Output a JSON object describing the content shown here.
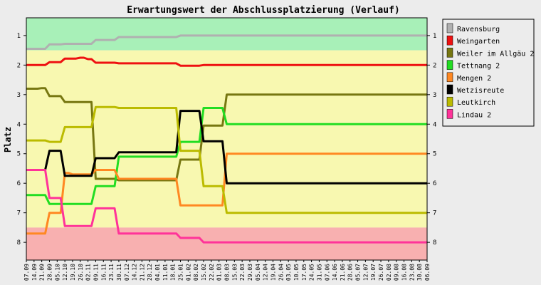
{
  "chart_data": {
    "type": "line",
    "title": "Erwartungswert der Abschlussplatzierung (Verlauf)",
    "ylabel": "Platz",
    "xlabel": "",
    "ylim": [
      0.4,
      8.6
    ],
    "y_inverted": true,
    "yticks": [
      "1",
      "2",
      "3",
      "4",
      "5",
      "6",
      "7",
      "8"
    ],
    "grid": false,
    "legend_position": "right",
    "zones": [
      {
        "from": 0.4,
        "to": 1.5,
        "color": "#a8f0b8"
      },
      {
        "from": 1.5,
        "to": 7.5,
        "color": "#f8f8b0"
      },
      {
        "from": 7.5,
        "to": 8.6,
        "color": "#f8b0b0"
      }
    ],
    "categories": [
      "07.09",
      "14.09",
      "21.09",
      "28.09",
      "05.10",
      "12.10",
      "19.10",
      "26.10",
      "02.11",
      "09.11",
      "16.11",
      "23.11",
      "30.11",
      "07.12",
      "14.12",
      "21.12",
      "28.12",
      "04.01",
      "11.01",
      "18.01",
      "25.01",
      "01.02",
      "08.02",
      "15.02",
      "22.02",
      "01.03",
      "08.03",
      "15.03",
      "22.03",
      "29.03",
      "05.04",
      "12.04",
      "19.04",
      "26.04",
      "03.05",
      "10.05",
      "17.05",
      "24.05",
      "31.05",
      "07.06",
      "14.06",
      "21.06",
      "28.06",
      "05.07",
      "12.07",
      "19.07",
      "26.07",
      "02.08",
      "09.08",
      "16.08",
      "23.08",
      "30.08",
      "06.09"
    ],
    "series": [
      {
        "name": "Ravensburg",
        "color": "#b0b0b0",
        "values": [
          1.45,
          1.45,
          1.45,
          1.3,
          1.3,
          1.28,
          1.28,
          1.28,
          1.28,
          1.15,
          1.15,
          1.15,
          1.05,
          1.05,
          1.05,
          1.05,
          1.05,
          1.05,
          1.05,
          1.05,
          1.0,
          1.0,
          1.0,
          1.0,
          1.0,
          1.0,
          1.0,
          1.0,
          1.0,
          1.0,
          1.0,
          1.0,
          1.0,
          1.0,
          1.0,
          1.0,
          1.0,
          1.0,
          1.0,
          1.0,
          1.0,
          1.0,
          1.0,
          1.0,
          1.0,
          1.0,
          1.0,
          1.0,
          1.0,
          1.0,
          1.0,
          1.0,
          1.0
        ]
      },
      {
        "name": "Weingarten",
        "color": "#ee1111",
        "values": [
          2.0,
          2.0,
          2.0,
          1.9,
          1.9,
          1.78,
          1.78,
          1.75,
          1.8,
          1.92,
          1.92,
          1.92,
          1.94,
          1.94,
          1.94,
          1.94,
          1.94,
          1.94,
          1.94,
          1.94,
          2.02,
          2.02,
          2.02,
          2.0,
          2.0,
          2.0,
          2.0,
          2.0,
          2.0,
          2.0,
          2.0,
          2.0,
          2.0,
          2.0,
          2.0,
          2.0,
          2.0,
          2.0,
          2.0,
          2.0,
          2.0,
          2.0,
          2.0,
          2.0,
          2.0,
          2.0,
          2.0,
          2.0,
          2.0,
          2.0,
          2.0,
          2.0,
          2.0
        ]
      },
      {
        "name": "Weiler im Allgäu 2",
        "color": "#777711",
        "values": [
          2.8,
          2.8,
          2.78,
          3.05,
          3.05,
          3.25,
          3.25,
          3.25,
          3.25,
          5.85,
          5.85,
          5.85,
          5.9,
          5.9,
          5.9,
          5.9,
          5.9,
          5.9,
          5.9,
          5.9,
          5.2,
          5.2,
          5.2,
          4.05,
          4.05,
          4.05,
          3.0,
          3.0,
          3.0,
          3.0,
          3.0,
          3.0,
          3.0,
          3.0,
          3.0,
          3.0,
          3.0,
          3.0,
          3.0,
          3.0,
          3.0,
          3.0,
          3.0,
          3.0,
          3.0,
          3.0,
          3.0,
          3.0,
          3.0,
          3.0,
          3.0,
          3.0,
          3.0
        ]
      },
      {
        "name": "Tettnang 2",
        "color": "#22dd22",
        "values": [
          6.4,
          6.4,
          6.4,
          6.7,
          6.7,
          6.7,
          6.7,
          6.7,
          6.7,
          6.1,
          6.1,
          6.1,
          5.1,
          5.1,
          5.1,
          5.1,
          5.1,
          5.1,
          5.1,
          5.1,
          4.6,
          4.6,
          4.6,
          3.45,
          3.45,
          3.45,
          4.0,
          4.0,
          4.0,
          4.0,
          4.0,
          4.0,
          4.0,
          4.0,
          4.0,
          4.0,
          4.0,
          4.0,
          4.0,
          4.0,
          4.0,
          4.0,
          4.0,
          4.0,
          4.0,
          4.0,
          4.0,
          4.0,
          4.0,
          4.0,
          4.0,
          4.0,
          4.0
        ]
      },
      {
        "name": "Mengen 2",
        "color": "#ff8822",
        "values": [
          7.7,
          7.7,
          7.7,
          7.0,
          7.0,
          5.65,
          5.7,
          5.7,
          5.7,
          5.55,
          5.55,
          5.55,
          5.85,
          5.85,
          5.85,
          5.85,
          5.85,
          5.85,
          5.85,
          5.85,
          6.75,
          6.75,
          6.75,
          6.75,
          6.75,
          6.75,
          5.0,
          5.0,
          5.0,
          5.0,
          5.0,
          5.0,
          5.0,
          5.0,
          5.0,
          5.0,
          5.0,
          5.0,
          5.0,
          5.0,
          5.0,
          5.0,
          5.0,
          5.0,
          5.0,
          5.0,
          5.0,
          5.0,
          5.0,
          5.0,
          5.0,
          5.0,
          5.0
        ]
      },
      {
        "name": "Wetzisreute",
        "color": "#000000",
        "values": [
          5.55,
          5.55,
          5.55,
          4.9,
          4.9,
          5.75,
          5.75,
          5.75,
          5.75,
          5.15,
          5.15,
          5.15,
          4.95,
          4.95,
          4.95,
          4.95,
          4.95,
          4.95,
          4.95,
          4.95,
          3.55,
          3.55,
          3.55,
          4.58,
          4.58,
          4.58,
          6.0,
          6.0,
          6.0,
          6.0,
          6.0,
          6.0,
          6.0,
          6.0,
          6.0,
          6.0,
          6.0,
          6.0,
          6.0,
          6.0,
          6.0,
          6.0,
          6.0,
          6.0,
          6.0,
          6.0,
          6.0,
          6.0,
          6.0,
          6.0,
          6.0,
          6.0,
          6.0
        ]
      },
      {
        "name": "Leutkirch",
        "color": "#bbbb00",
        "values": [
          4.55,
          4.55,
          4.55,
          4.6,
          4.6,
          4.1,
          4.1,
          4.1,
          4.1,
          3.42,
          3.42,
          3.42,
          3.45,
          3.45,
          3.45,
          3.45,
          3.45,
          3.45,
          3.45,
          3.45,
          4.9,
          4.9,
          4.9,
          6.1,
          6.1,
          6.1,
          7.0,
          7.0,
          7.0,
          7.0,
          7.0,
          7.0,
          7.0,
          7.0,
          7.0,
          7.0,
          7.0,
          7.0,
          7.0,
          7.0,
          7.0,
          7.0,
          7.0,
          7.0,
          7.0,
          7.0,
          7.0,
          7.0,
          7.0,
          7.0,
          7.0,
          7.0,
          7.0
        ]
      },
      {
        "name": "Lindau 2",
        "color": "#ff3399",
        "values": [
          5.55,
          5.55,
          5.55,
          6.5,
          6.5,
          7.45,
          7.45,
          7.45,
          7.45,
          6.85,
          6.85,
          6.85,
          7.7,
          7.7,
          7.7,
          7.7,
          7.7,
          7.7,
          7.7,
          7.7,
          7.85,
          7.85,
          7.85,
          8.0,
          8.0,
          8.0,
          8.0,
          8.0,
          8.0,
          8.0,
          8.0,
          8.0,
          8.0,
          8.0,
          8.0,
          8.0,
          8.0,
          8.0,
          8.0,
          8.0,
          8.0,
          8.0,
          8.0,
          8.0,
          8.0,
          8.0,
          8.0,
          8.0,
          8.0,
          8.0,
          8.0,
          8.0,
          8.0
        ]
      }
    ]
  }
}
